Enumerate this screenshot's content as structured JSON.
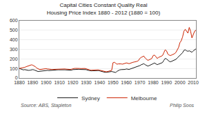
{
  "chart_data": {
    "type": "line",
    "title": "Capital Cities Constant Quality Real Housing Price Index 1880 - 2012 (1880 = 100)",
    "annotations": [
      "Source: ABS, Stapleton",
      "Philip Soos"
    ],
    "x": [
      1880,
      1881,
      1882,
      1883,
      1884,
      1885,
      1886,
      1887,
      1888,
      1889,
      1890,
      1891,
      1892,
      1893,
      1894,
      1895,
      1896,
      1897,
      1898,
      1899,
      1900,
      1901,
      1902,
      1903,
      1904,
      1905,
      1906,
      1907,
      1908,
      1909,
      1910,
      1911,
      1912,
      1913,
      1914,
      1915,
      1916,
      1917,
      1918,
      1919,
      1920,
      1921,
      1922,
      1923,
      1924,
      1925,
      1926,
      1927,
      1928,
      1929,
      1930,
      1931,
      1932,
      1933,
      1934,
      1935,
      1936,
      1937,
      1938,
      1939,
      1940,
      1941,
      1942,
      1943,
      1944,
      1945,
      1946,
      1947,
      1948,
      1949,
      1950,
      1951,
      1952,
      1953,
      1954,
      1955,
      1956,
      1957,
      1958,
      1959,
      1960,
      1961,
      1962,
      1963,
      1964,
      1965,
      1966,
      1967,
      1968,
      1969,
      1970,
      1971,
      1972,
      1973,
      1974,
      1975,
      1976,
      1977,
      1978,
      1979,
      1980,
      1981,
      1982,
      1983,
      1984,
      1985,
      1986,
      1987,
      1988,
      1989,
      1990,
      1991,
      1992,
      1993,
      1994,
      1995,
      1996,
      1997,
      1998,
      1999,
      2000,
      2001,
      2002,
      2003,
      2004,
      2005,
      2006,
      2007,
      2008,
      2009,
      2010,
      2011,
      2012
    ],
    "series": [
      {
        "name": "Sydney",
        "color": "#1a1a1a",
        "values": [
          100,
          95,
          90,
          85,
          88,
          85,
          82,
          80,
          82,
          85,
          88,
          85,
          80,
          72,
          68,
          70,
          72,
          75,
          78,
          80,
          82,
          80,
          78,
          80,
          82,
          82,
          83,
          84,
          85,
          86,
          87,
          88,
          88,
          87,
          86,
          85,
          84,
          82,
          80,
          82,
          88,
          90,
          91,
          92,
          91,
          90,
          89,
          90,
          91,
          90,
          88,
          82,
          78,
          76,
          75,
          76,
          77,
          78,
          79,
          78,
          75,
          70,
          65,
          62,
          60,
          60,
          62,
          65,
          68,
          68,
          65,
          60,
          58,
          70,
          80,
          85,
          88,
          88,
          90,
          90,
          95,
          92,
          90,
          95,
          100,
          105,
          108,
          110,
          115,
          120,
          130,
          138,
          145,
          150,
          140,
          130,
          125,
          130,
          135,
          140,
          150,
          158,
          150,
          140,
          145,
          150,
          155,
          162,
          185,
          205,
          200,
          185,
          175,
          170,
          175,
          180,
          185,
          195,
          210,
          225,
          240,
          250,
          265,
          290,
          295,
          285,
          280,
          285,
          275,
          270,
          285,
          295,
          305
        ]
      },
      {
        "name": "Melbourne",
        "color": "#cc2200",
        "values": [
          100,
          102,
          105,
          108,
          112,
          118,
          122,
          128,
          135,
          138,
          135,
          128,
          118,
          105,
          95,
          90,
          90,
          92,
          95,
          98,
          98,
          95,
          92,
          90,
          90,
          90,
          91,
          92,
          93,
          94,
          95,
          96,
          96,
          96,
          95,
          93,
          91,
          90,
          90,
          92,
          98,
          100,
          101,
          102,
          101,
          100,
          99,
          100,
          101,
          100,
          96,
          90,
          85,
          83,
          82,
          83,
          84,
          85,
          86,
          85,
          82,
          78,
          72,
          68,
          65,
          65,
          68,
          72,
          78,
          80,
          160,
          165,
          155,
          145,
          148,
          150,
          148,
          145,
          148,
          150,
          158,
          155,
          150,
          155,
          162,
          165,
          168,
          170,
          175,
          182,
          205,
          215,
          225,
          230,
          210,
          195,
          185,
          190,
          195,
          205,
          235,
          240,
          225,
          205,
          215,
          220,
          225,
          235,
          265,
          295,
          285,
          250,
          240,
          235,
          242,
          248,
          255,
          268,
          290,
          320,
          370,
          390,
          430,
          490,
          510,
          490,
          470,
          530,
          490,
          420,
          460,
          490,
          500
        ]
      }
    ],
    "xlim": [
      1880,
      2012
    ],
    "xticks": [
      1880,
      1890,
      1900,
      1910,
      1920,
      1930,
      1940,
      1950,
      1960,
      1970,
      1980,
      1990,
      2000,
      2010
    ],
    "ylim": [
      0,
      600
    ],
    "yticks": [
      0,
      100,
      200,
      300,
      400,
      500,
      600
    ],
    "grid": true,
    "legend": "bottom"
  }
}
